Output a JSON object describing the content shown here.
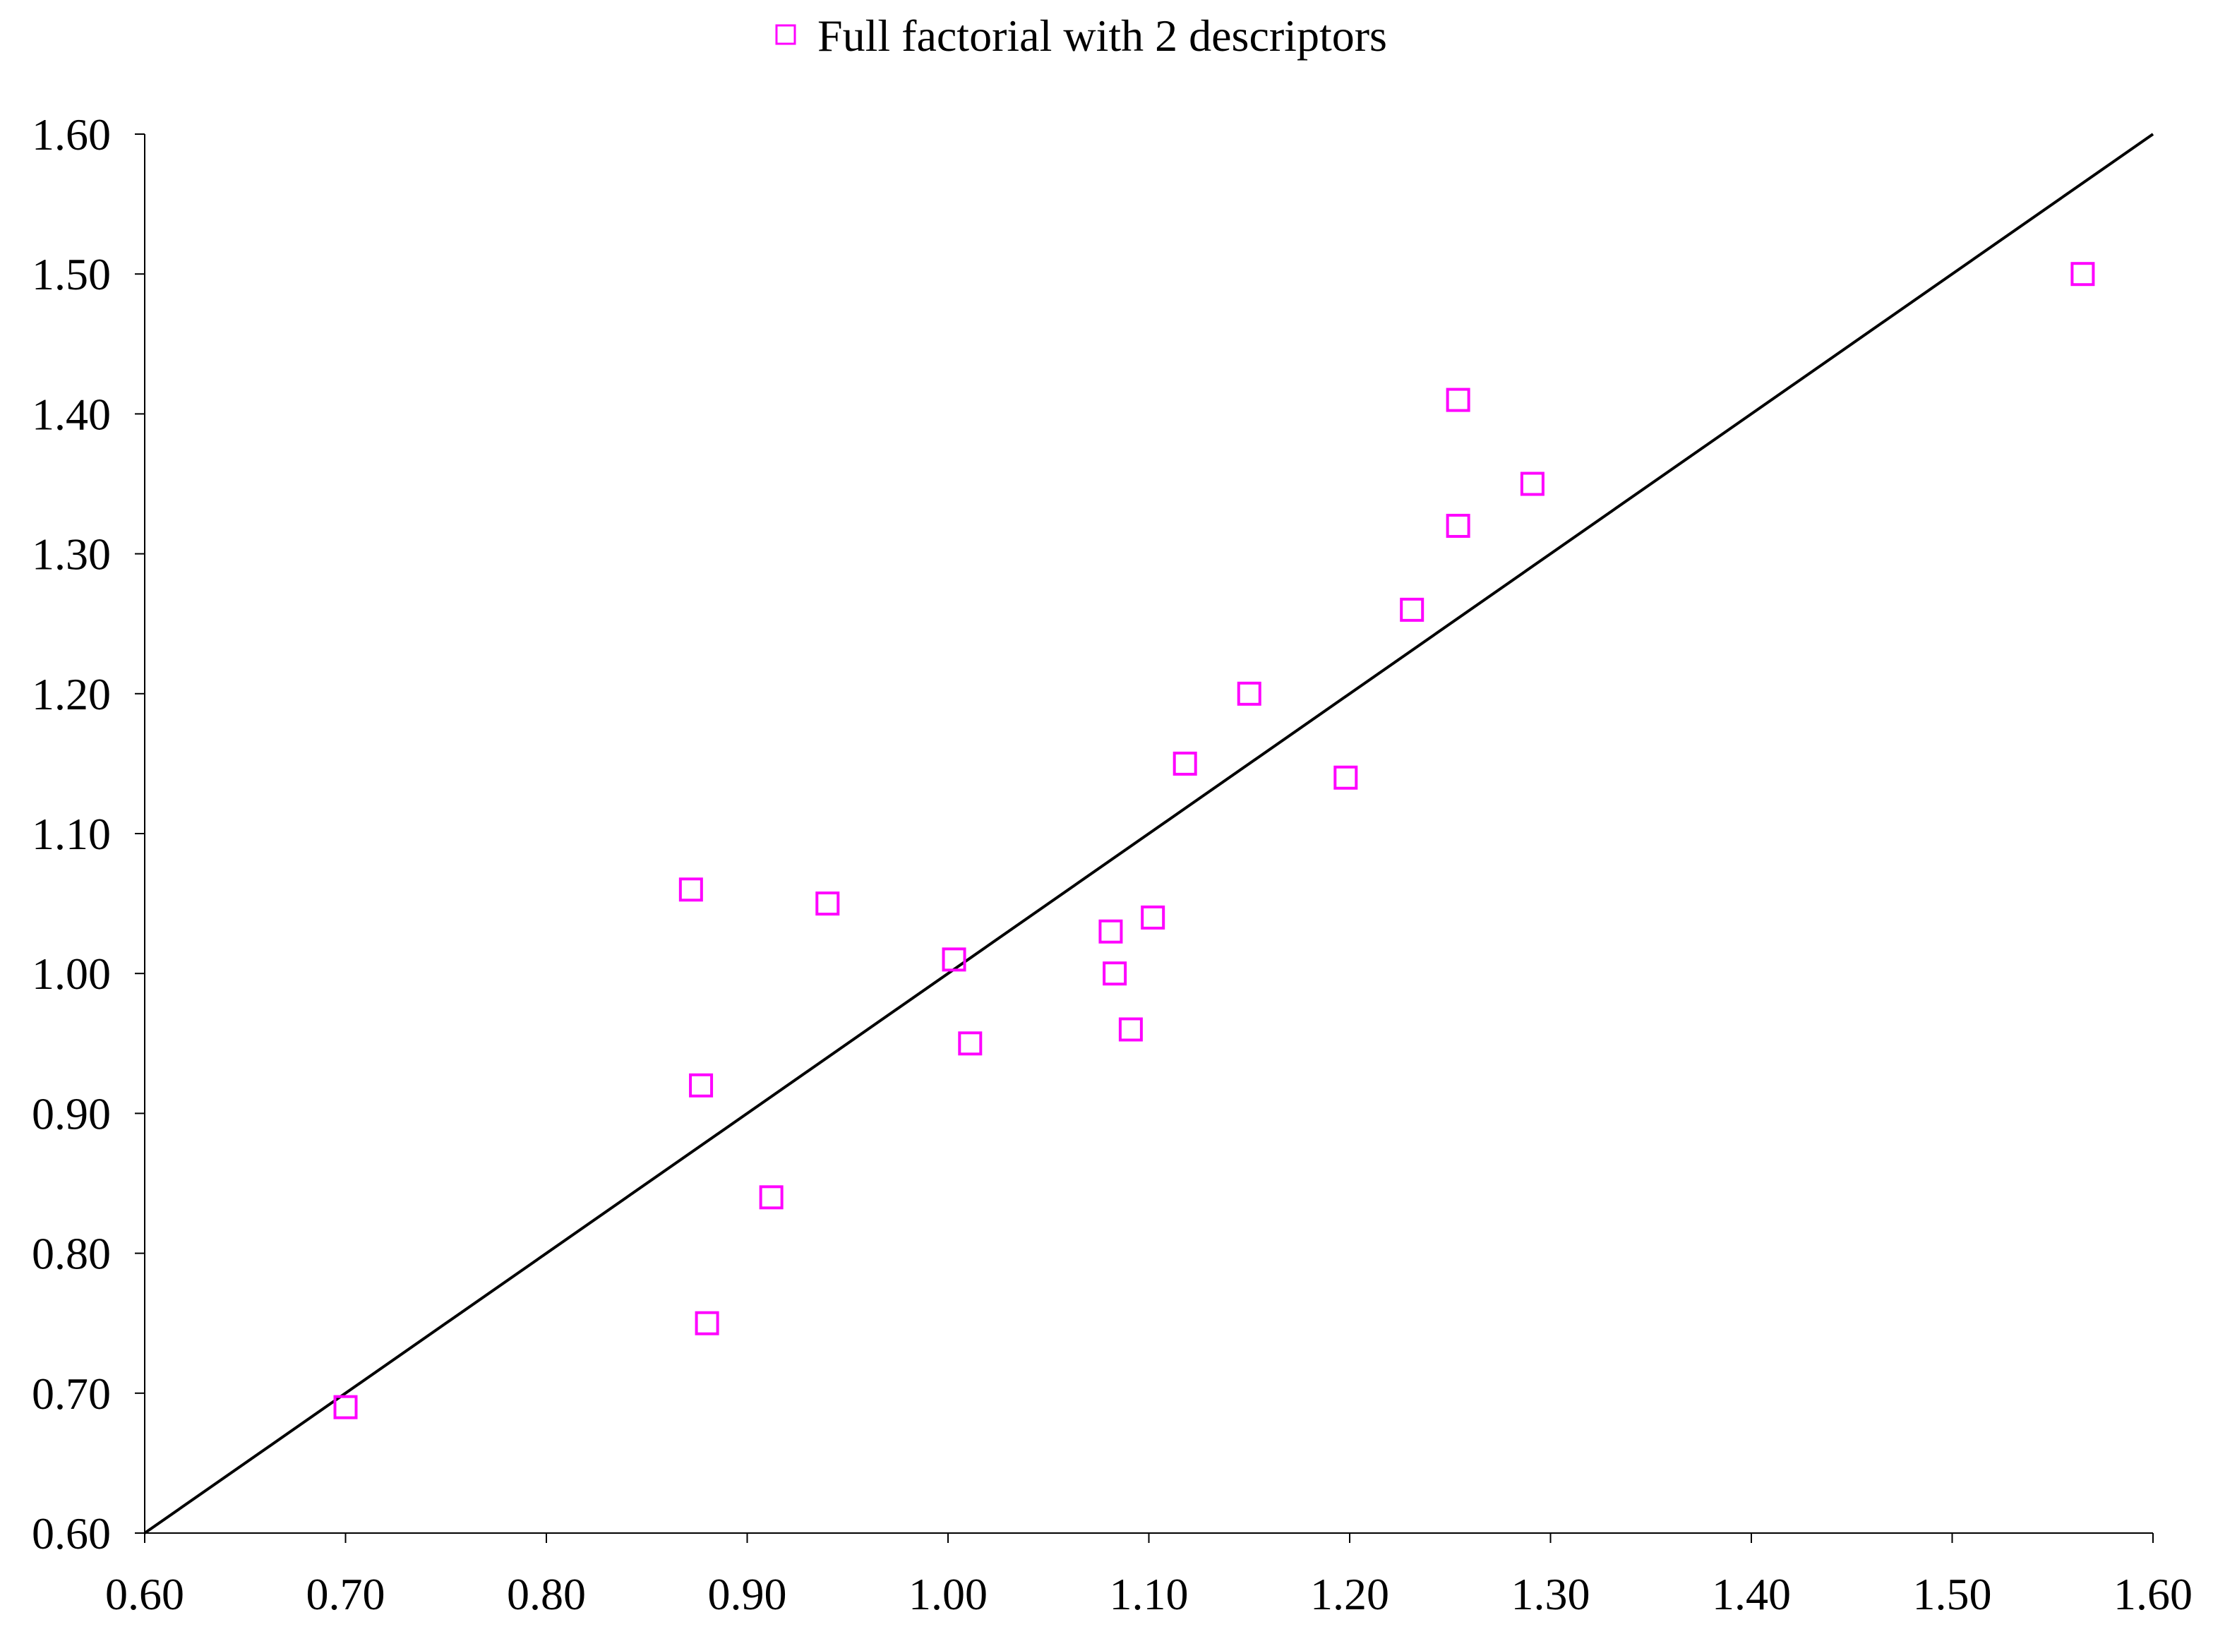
{
  "chart_data": {
    "type": "scatter",
    "title": "",
    "xlabel": "",
    "ylabel": "",
    "xlim": [
      0.6,
      1.6
    ],
    "ylim": [
      0.6,
      1.6
    ],
    "x_ticks": [
      "0.60",
      "0.70",
      "0.80",
      "0.90",
      "1.00",
      "1.10",
      "1.20",
      "1.30",
      "1.40",
      "1.50",
      "1.60"
    ],
    "y_ticks": [
      "0.60",
      "0.70",
      "0.80",
      "0.90",
      "1.00",
      "1.10",
      "1.20",
      "1.30",
      "1.40",
      "1.50",
      "1.60"
    ],
    "grid": false,
    "legend_position": "top-center",
    "reference_line": {
      "type": "y=x",
      "from": [
        0.6,
        0.6
      ],
      "to": [
        1.6,
        1.6
      ],
      "color": "#000000"
    },
    "series": [
      {
        "name": "Full factorial with 2 descriptors",
        "marker": "open-square",
        "color": "#ff00ff",
        "points": [
          {
            "x": 0.7,
            "y": 0.69
          },
          {
            "x": 0.872,
            "y": 1.06
          },
          {
            "x": 0.877,
            "y": 0.92
          },
          {
            "x": 0.88,
            "y": 0.75
          },
          {
            "x": 0.912,
            "y": 0.84
          },
          {
            "x": 0.94,
            "y": 1.05
          },
          {
            "x": 1.003,
            "y": 1.01
          },
          {
            "x": 1.011,
            "y": 0.95
          },
          {
            "x": 1.081,
            "y": 1.03
          },
          {
            "x": 1.083,
            "y": 1.0
          },
          {
            "x": 1.091,
            "y": 0.96
          },
          {
            "x": 1.102,
            "y": 1.04
          },
          {
            "x": 1.118,
            "y": 1.15
          },
          {
            "x": 1.15,
            "y": 1.2
          },
          {
            "x": 1.198,
            "y": 1.14
          },
          {
            "x": 1.231,
            "y": 1.26
          },
          {
            "x": 1.254,
            "y": 1.41
          },
          {
            "x": 1.254,
            "y": 1.32
          },
          {
            "x": 1.291,
            "y": 1.35
          },
          {
            "x": 1.565,
            "y": 1.5
          }
        ]
      }
    ]
  }
}
